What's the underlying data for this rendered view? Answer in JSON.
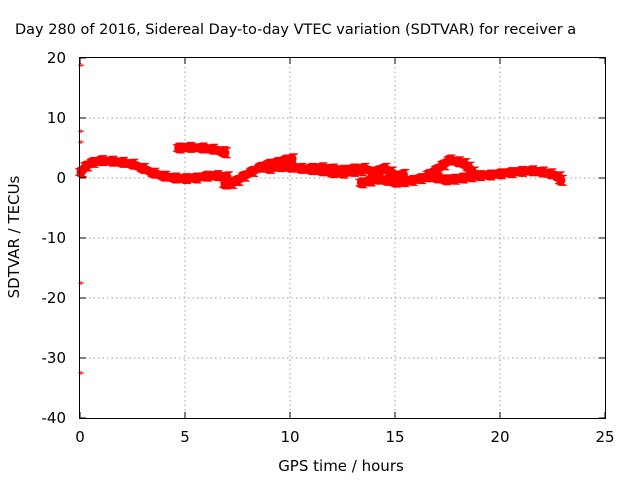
{
  "chart_data": {
    "type": "scatter",
    "title": "Day 280 of 2016, Sidereal Day-to-day VTEC variation (SDTVAR) for receiver a",
    "xlabel": "GPS time / hours",
    "ylabel": "SDTVAR / TECUs",
    "xlim": [
      0,
      25
    ],
    "ylim": [
      -40,
      20
    ],
    "xticks": [
      0,
      5,
      10,
      15,
      20,
      25
    ],
    "yticks": [
      -40,
      -30,
      -20,
      -10,
      0,
      10,
      20
    ],
    "grid": true,
    "legend": "none",
    "series_color": "#ff0000",
    "series": [
      {
        "segments": [
          [
            [
              0.05,
              1.0
            ],
            [
              0.3,
              2.0
            ],
            [
              0.6,
              2.6
            ],
            [
              1.0,
              2.9
            ],
            [
              1.5,
              2.8
            ],
            [
              2.0,
              2.6
            ],
            [
              2.5,
              2.3
            ],
            [
              3.0,
              1.6
            ],
            [
              3.5,
              0.8
            ],
            [
              4.0,
              0.3
            ],
            [
              4.5,
              0.0
            ],
            [
              5.0,
              -0.1
            ],
            [
              5.5,
              0.0
            ],
            [
              6.0,
              0.3
            ],
            [
              6.5,
              0.4
            ],
            [
              7.0,
              0.2
            ]
          ],
          [
            [
              4.7,
              5.0
            ],
            [
              5.2,
              5.1
            ],
            [
              5.8,
              5.0
            ],
            [
              6.3,
              4.8
            ],
            [
              6.8,
              4.4
            ],
            [
              6.9,
              4.2
            ]
          ],
          [
            [
              6.9,
              -1.0
            ],
            [
              7.2,
              -0.9
            ],
            [
              7.5,
              -0.4
            ],
            [
              7.8,
              0.3
            ],
            [
              8.2,
              1.1
            ],
            [
              8.6,
              1.8
            ],
            [
              9.0,
              2.3
            ],
            [
              9.4,
              2.6
            ],
            [
              9.8,
              3.0
            ],
            [
              10.1,
              3.2
            ]
          ],
          [
            [
              9.0,
              1.6
            ],
            [
              9.5,
              1.9
            ],
            [
              10.0,
              1.8
            ],
            [
              10.5,
              1.6
            ],
            [
              11.0,
              1.4
            ],
            [
              11.5,
              1.2
            ],
            [
              12.0,
              0.9
            ],
            [
              12.5,
              0.8
            ],
            [
              13.0,
              1.1
            ],
            [
              13.4,
              1.2
            ]
          ],
          [
            [
              11.0,
              1.6
            ],
            [
              11.5,
              1.7
            ],
            [
              12.0,
              1.5
            ],
            [
              12.5,
              1.3
            ],
            [
              13.0,
              1.5
            ],
            [
              13.5,
              1.6
            ],
            [
              14.0,
              1.0
            ]
          ],
          [
            [
              13.4,
              -0.8
            ],
            [
              13.8,
              -0.5
            ],
            [
              14.2,
              -0.2
            ],
            [
              14.6,
              -0.4
            ],
            [
              15.0,
              -0.7
            ],
            [
              15.4,
              -0.6
            ],
            [
              15.8,
              -0.4
            ],
            [
              16.2,
              -0.1
            ],
            [
              16.6,
              0.2
            ],
            [
              17.0,
              0.0
            ],
            [
              17.4,
              -0.3
            ],
            [
              17.8,
              -0.2
            ],
            [
              18.2,
              0.0
            ],
            [
              18.6,
              0.2
            ],
            [
              19.0,
              0.4
            ],
            [
              19.5,
              0.5
            ],
            [
              20.0,
              0.7
            ],
            [
              20.5,
              0.9
            ],
            [
              21.0,
              1.1
            ],
            [
              21.5,
              1.2
            ],
            [
              22.0,
              1.0
            ],
            [
              22.4,
              0.7
            ],
            [
              22.8,
              0.2
            ],
            [
              22.9,
              -0.4
            ]
          ],
          [
            [
              14.2,
              1.2
            ],
            [
              14.5,
              1.6
            ],
            [
              14.8,
              1.0
            ],
            [
              15.1,
              0.3
            ],
            [
              15.4,
              0.6
            ]
          ],
          [
            [
              16.6,
              0.6
            ],
            [
              17.0,
              1.4
            ],
            [
              17.3,
              2.2
            ],
            [
              17.6,
              3.0
            ],
            [
              18.0,
              2.7
            ],
            [
              18.3,
              2.4
            ],
            [
              18.5,
              1.8
            ],
            [
              18.7,
              1.0
            ]
          ]
        ]
      }
    ],
    "outliers": [
      [
        0.05,
        18.8
      ],
      [
        0.05,
        7.8
      ],
      [
        0.05,
        6.0
      ],
      [
        0.05,
        -17.5
      ],
      [
        0.05,
        -32.5
      ]
    ]
  }
}
